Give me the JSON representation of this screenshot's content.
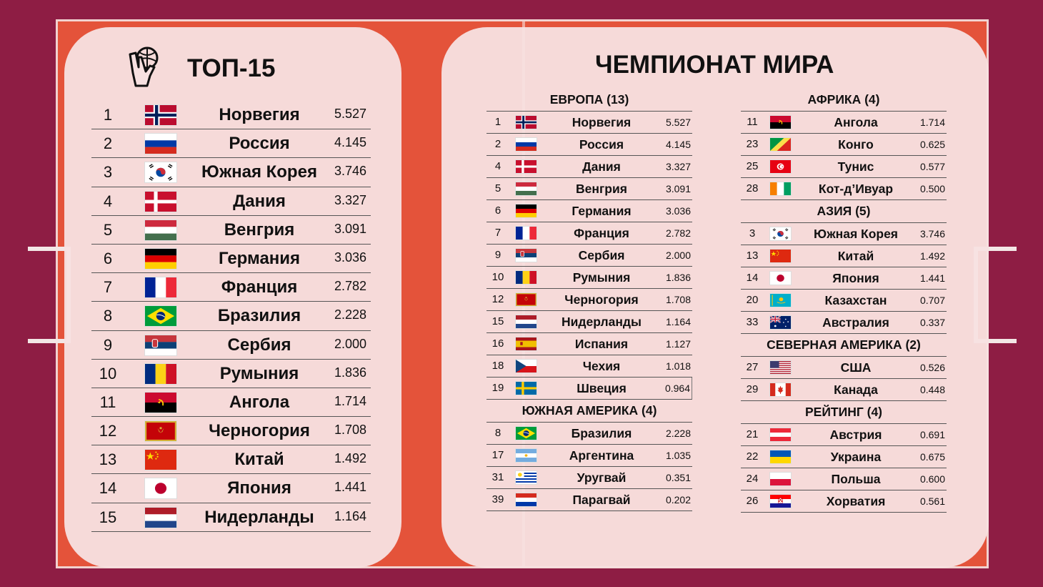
{
  "colors": {
    "background": "#8e1d44",
    "court": "#e4533a",
    "panel": "#f7e1e1",
    "text": "#111111"
  },
  "top15": {
    "title": "ТОП-15",
    "icon": "handball-icon",
    "rows": [
      {
        "rank": "1",
        "flag": "norway",
        "name": "Норвегия",
        "score": "5.527"
      },
      {
        "rank": "2",
        "flag": "russia",
        "name": "Россия",
        "score": "4.145"
      },
      {
        "rank": "3",
        "flag": "south-korea",
        "name": "Южная Корея",
        "score": "3.746"
      },
      {
        "rank": "4",
        "flag": "denmark",
        "name": "Дания",
        "score": "3.327"
      },
      {
        "rank": "5",
        "flag": "hungary",
        "name": "Венгрия",
        "score": "3.091"
      },
      {
        "rank": "6",
        "flag": "germany",
        "name": "Германия",
        "score": "3.036"
      },
      {
        "rank": "7",
        "flag": "france",
        "name": "Франция",
        "score": "2.782"
      },
      {
        "rank": "8",
        "flag": "brazil",
        "name": "Бразилия",
        "score": "2.228"
      },
      {
        "rank": "9",
        "flag": "serbia",
        "name": "Сербия",
        "score": "2.000"
      },
      {
        "rank": "10",
        "flag": "romania",
        "name": "Румыния",
        "score": "1.836"
      },
      {
        "rank": "11",
        "flag": "angola",
        "name": "Ангола",
        "score": "1.714"
      },
      {
        "rank": "12",
        "flag": "montenegro",
        "name": "Черногория",
        "score": "1.708"
      },
      {
        "rank": "13",
        "flag": "china",
        "name": "Китай",
        "score": "1.492"
      },
      {
        "rank": "14",
        "flag": "japan",
        "name": "Япония",
        "score": "1.441"
      },
      {
        "rank": "15",
        "flag": "netherlands",
        "name": "Нидерланды",
        "score": "1.164"
      }
    ]
  },
  "championship": {
    "title": "ЧЕМПИОНАТ МИРА",
    "columns": [
      [
        {
          "heading": "ЕВРОПА (13)",
          "rows": [
            {
              "rank": "1",
              "flag": "norway",
              "name": "Норвегия",
              "score": "5.527"
            },
            {
              "rank": "2",
              "flag": "russia",
              "name": "Россия",
              "score": "4.145"
            },
            {
              "rank": "4",
              "flag": "denmark",
              "name": "Дания",
              "score": "3.327"
            },
            {
              "rank": "5",
              "flag": "hungary",
              "name": "Венгрия",
              "score": "3.091"
            },
            {
              "rank": "6",
              "flag": "germany",
              "name": "Германия",
              "score": "3.036"
            },
            {
              "rank": "7",
              "flag": "france",
              "name": "Франция",
              "score": "2.782"
            },
            {
              "rank": "9",
              "flag": "serbia",
              "name": "Сербия",
              "score": "2.000"
            },
            {
              "rank": "10",
              "flag": "romania",
              "name": "Румыния",
              "score": "1.836"
            },
            {
              "rank": "12",
              "flag": "montenegro",
              "name": "Черногория",
              "score": "1.708"
            },
            {
              "rank": "15",
              "flag": "netherlands",
              "name": "Нидерланды",
              "score": "1.164"
            },
            {
              "rank": "16",
              "flag": "spain",
              "name": "Испания",
              "score": "1.127"
            },
            {
              "rank": "18",
              "flag": "czechia",
              "name": "Чехия",
              "score": "1.018"
            },
            {
              "rank": "19",
              "flag": "sweden",
              "name": "Швеция",
              "score": "0.964"
            }
          ]
        },
        {
          "heading": "ЮЖНАЯ АМЕРИКА (4)",
          "rows": [
            {
              "rank": "8",
              "flag": "brazil",
              "name": "Бразилия",
              "score": "2.228"
            },
            {
              "rank": "17",
              "flag": "argentina",
              "name": "Аргентина",
              "score": "1.035"
            },
            {
              "rank": "31",
              "flag": "uruguay",
              "name": "Уругвай",
              "score": "0.351"
            },
            {
              "rank": "39",
              "flag": "paraguay",
              "name": "Парагвай",
              "score": "0.202"
            }
          ]
        }
      ],
      [
        {
          "heading": "АФРИКА (4)",
          "rows": [
            {
              "rank": "11",
              "flag": "angola",
              "name": "Ангола",
              "score": "1.714"
            },
            {
              "rank": "23",
              "flag": "congo",
              "name": "Конго",
              "score": "0.625"
            },
            {
              "rank": "25",
              "flag": "tunisia",
              "name": "Тунис",
              "score": "0.577"
            },
            {
              "rank": "28",
              "flag": "ivory-coast",
              "name": "Кот-д’Ивуар",
              "score": "0.500"
            }
          ]
        },
        {
          "heading": "АЗИЯ (5)",
          "rows": [
            {
              "rank": "3",
              "flag": "south-korea",
              "name": "Южная Корея",
              "score": "3.746"
            },
            {
              "rank": "13",
              "flag": "china",
              "name": "Китай",
              "score": "1.492"
            },
            {
              "rank": "14",
              "flag": "japan",
              "name": "Япония",
              "score": "1.441"
            },
            {
              "rank": "20",
              "flag": "kazakhstan",
              "name": "Казахстан",
              "score": "0.707"
            },
            {
              "rank": "33",
              "flag": "australia",
              "name": "Австралия",
              "score": "0.337"
            }
          ]
        },
        {
          "heading": "СЕВЕРНАЯ АМЕРИКА (2)",
          "rows": [
            {
              "rank": "27",
              "flag": "usa",
              "name": "США",
              "score": "0.526"
            },
            {
              "rank": "29",
              "flag": "canada",
              "name": "Канада",
              "score": "0.448"
            }
          ]
        },
        {
          "heading": "РЕЙТИНГ (4)",
          "rows": [
            {
              "rank": "21",
              "flag": "austria",
              "name": "Австрия",
              "score": "0.691"
            },
            {
              "rank": "22",
              "flag": "ukraine",
              "name": "Украина",
              "score": "0.675"
            },
            {
              "rank": "24",
              "flag": "poland",
              "name": "Польша",
              "score": "0.600"
            },
            {
              "rank": "26",
              "flag": "croatia",
              "name": "Хорватия",
              "score": "0.561"
            }
          ]
        }
      ]
    ]
  }
}
